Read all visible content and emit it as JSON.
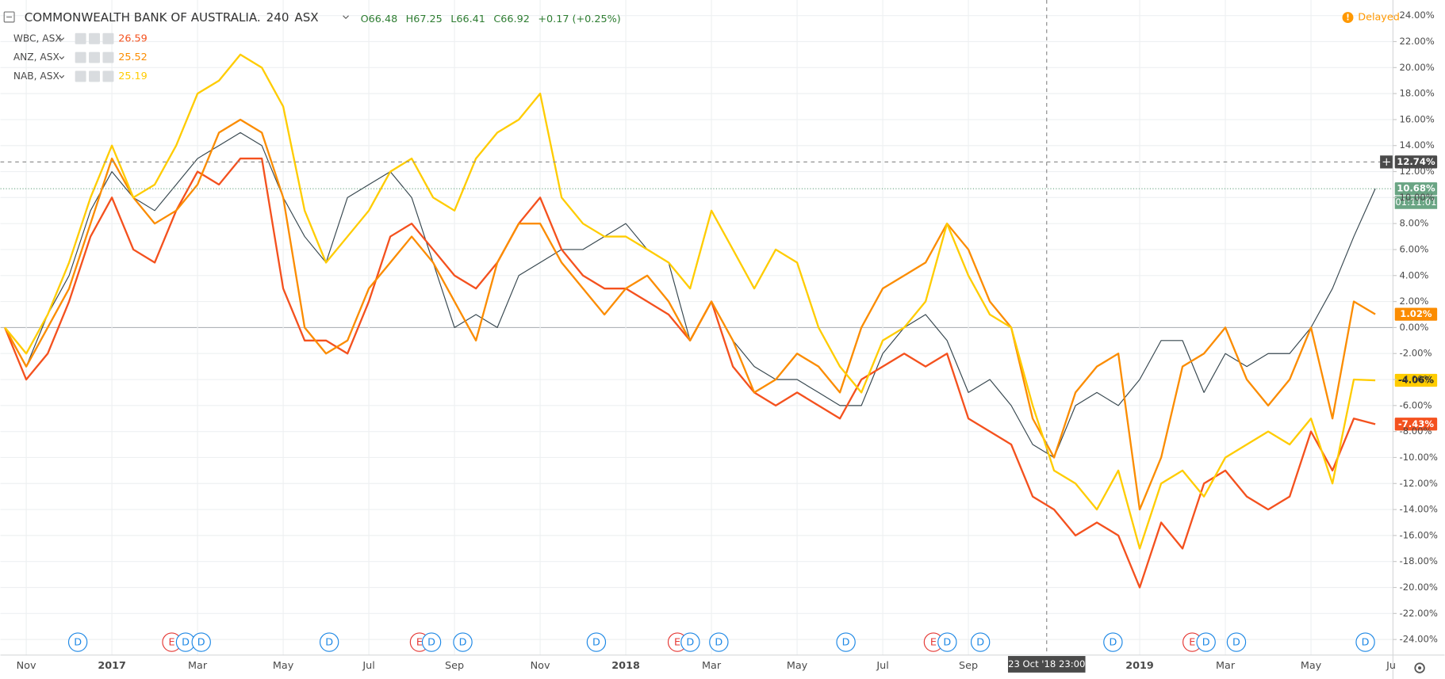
{
  "chart_data": {
    "type": "line",
    "title": "COMMONWEALTH BANK OF AUSTRALIA.",
    "interval": "240",
    "exchange": "ASX",
    "ohlc": [
      "O66.48",
      "H67.25",
      "L66.41",
      "C66.92"
    ],
    "change": "+0.17 (+0.25%)",
    "status": "Delayed",
    "categories": [
      null,
      "Nov",
      null,
      null,
      null,
      "2017",
      null,
      null,
      null,
      "Mar",
      null,
      null,
      null,
      "May",
      null,
      null,
      null,
      "Jul",
      null,
      null,
      null,
      "Sep",
      null,
      null,
      null,
      "Nov",
      null,
      null,
      null,
      "2018",
      null,
      null,
      null,
      "Mar",
      null,
      null,
      null,
      "May",
      null,
      null,
      null,
      "Jul",
      null,
      null,
      null,
      "Sep",
      null,
      null,
      null,
      null,
      null,
      null,
      null,
      "2019",
      null,
      null,
      null,
      "Mar",
      null,
      null,
      null,
      "May",
      null,
      null,
      null
    ],
    "x_cut_label": "Ju",
    "main_series": {
      "color": "#37474f",
      "last_label": "10.68%",
      "badge_color": "#6aa584",
      "countdown": "01:11:01",
      "values": [
        0,
        -3,
        1,
        4,
        9,
        12,
        10,
        9,
        11,
        13,
        14,
        15,
        14,
        10,
        7,
        5,
        10,
        11,
        12,
        10,
        5,
        0,
        1,
        0,
        4,
        5,
        6,
        6,
        7,
        8,
        6,
        5,
        -1,
        2,
        -1,
        -3,
        -4,
        -4,
        -5,
        -6,
        -6,
        -2,
        0,
        1,
        -1,
        -5,
        -4,
        -6,
        -9,
        -10,
        -6,
        -5,
        -6,
        -4,
        -1,
        -1,
        -5,
        -2,
        -3,
        -2,
        -2,
        0,
        3,
        7,
        10.68
      ]
    },
    "series": [
      {
        "name": "WBC, ASX",
        "legend_value": "26.59",
        "color": "#f4511e",
        "last_label": "-7.43%",
        "values": [
          0,
          -4,
          -2,
          2,
          7,
          10,
          6,
          5,
          9,
          12,
          11,
          13,
          13,
          3,
          -1,
          -1,
          -2,
          2,
          7,
          8,
          6,
          4,
          3,
          5,
          8,
          10,
          6,
          4,
          3,
          3,
          2,
          1,
          -1,
          2,
          -3,
          -5,
          -6,
          -5,
          -6,
          -7,
          -4,
          -3,
          -2,
          -3,
          -2,
          -7,
          -8,
          -9,
          -13,
          -14,
          -16,
          -15,
          -16,
          -20,
          -15,
          -17,
          -12,
          -11,
          -13,
          -14,
          -13,
          -8,
          -11,
          -7,
          -7.43
        ]
      },
      {
        "name": "ANZ, ASX",
        "legend_value": "25.52",
        "color": "#fb8c00",
        "last_label": "1.02%",
        "values": [
          0,
          -3,
          0,
          3,
          8,
          13,
          10,
          8,
          9,
          11,
          15,
          16,
          15,
          10,
          0,
          -2,
          -1,
          3,
          5,
          7,
          5,
          2,
          -1,
          5,
          8,
          8,
          5,
          3,
          1,
          3,
          4,
          2,
          -1,
          2,
          -1,
          -5,
          -4,
          -2,
          -3,
          -5,
          0,
          3,
          4,
          5,
          8,
          6,
          2,
          0,
          -7,
          -10,
          -5,
          -3,
          -2,
          -14,
          -10,
          -3,
          -2,
          0,
          -4,
          -6,
          -4,
          0,
          -7,
          2,
          1.02
        ]
      },
      {
        "name": "NAB, ASX",
        "legend_value": "25.19",
        "color": "#ffcc00",
        "last_label": "-4.06%",
        "values": [
          0,
          -2,
          1,
          5,
          10,
          14,
          10,
          11,
          14,
          18,
          19,
          21,
          20,
          17,
          9,
          5,
          7,
          9,
          12,
          13,
          10,
          9,
          13,
          15,
          16,
          18,
          10,
          8,
          7,
          7,
          6,
          5,
          3,
          9,
          6,
          3,
          6,
          5,
          0,
          -3,
          -5,
          -1,
          0,
          2,
          8,
          4,
          1,
          0,
          -6,
          -11,
          -12,
          -14,
          -11,
          -17,
          -12,
          -11,
          -13,
          -10,
          -9,
          -8,
          -9,
          -7,
          -12,
          -4,
          -4.06
        ]
      }
    ],
    "ylim": [
      -25.2,
      25.2
    ],
    "yticks": [
      {
        "value": -24,
        "label": "-24.00%"
      },
      {
        "value": -22,
        "label": "-22.00%"
      },
      {
        "value": -20,
        "label": "-20.00%"
      },
      {
        "value": -18,
        "label": "-18.00%"
      },
      {
        "value": -16,
        "label": "-16.00%"
      },
      {
        "value": -14,
        "label": "-14.00%"
      },
      {
        "value": -12,
        "label": "-12.00%"
      },
      {
        "value": -10,
        "label": "-10.00%"
      },
      {
        "value": -8,
        "label": "-8.00%"
      },
      {
        "value": -6,
        "label": "-6.00%"
      },
      {
        "value": -4,
        "label": "-4.00%"
      },
      {
        "value": -2,
        "label": "-2.00%"
      },
      {
        "value": 0,
        "label": "0.00%"
      },
      {
        "value": 2,
        "label": "2.00%"
      },
      {
        "value": 4,
        "label": "4.00%"
      },
      {
        "value": 6,
        "label": "6.00%"
      },
      {
        "value": 8,
        "label": "8.00%"
      },
      {
        "value": 10,
        "label": "10.00%"
      },
      {
        "value": 12,
        "label": "12.00%"
      },
      {
        "value": 14,
        "label": "14.00%"
      },
      {
        "value": 16,
        "label": "16.00%"
      },
      {
        "value": 18,
        "label": "18.00%"
      },
      {
        "value": 20,
        "label": "20.00%"
      },
      {
        "value": 22,
        "label": "22.00%"
      },
      {
        "value": 24,
        "label": "24.00%"
      }
    ],
    "grid": true,
    "crosshair": {
      "x_label": "23 Oct '18   23:00",
      "y": {
        "value": 12.74,
        "label": "12.74%"
      }
    },
    "events": [
      {
        "label": "D"
      },
      {
        "label": "E"
      },
      {
        "label": "D"
      },
      {
        "label": "D"
      },
      {
        "label": "D"
      },
      {
        "label": "E"
      },
      {
        "label": "D"
      },
      {
        "label": "D"
      },
      {
        "label": "D"
      },
      {
        "label": "E"
      },
      {
        "label": "D"
      },
      {
        "label": "D"
      },
      {
        "label": "D"
      },
      {
        "label": "E"
      },
      {
        "label": "D"
      },
      {
        "label": "D"
      },
      {
        "label": "D"
      },
      {
        "label": "E"
      },
      {
        "label": "D"
      },
      {
        "label": "D"
      },
      {
        "label": "D"
      }
    ]
  }
}
